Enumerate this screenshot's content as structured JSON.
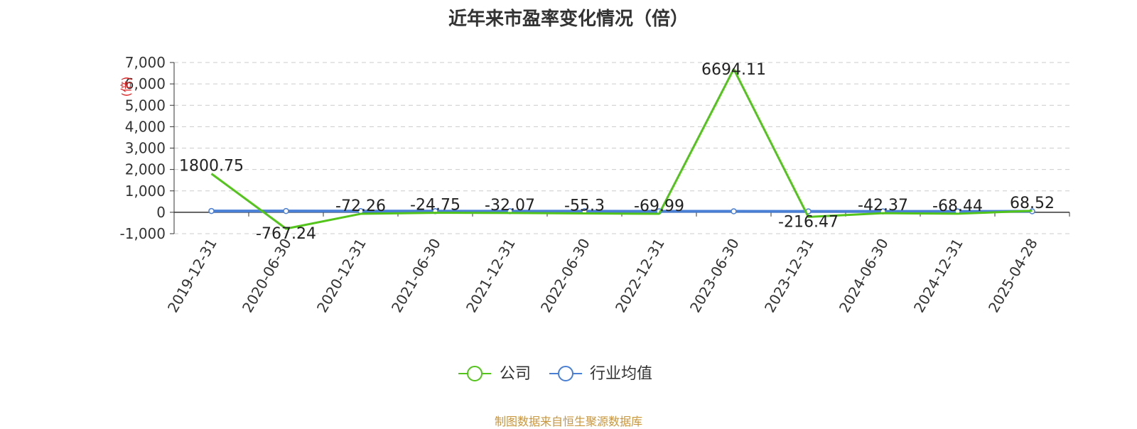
{
  "chart_data": {
    "type": "line",
    "title": "近年来市盈率变化情况（倍）",
    "ylabel": "(倍)",
    "xlabel": "",
    "x": [
      "2019-12-31",
      "2020-06-30",
      "2020-12-31",
      "2021-06-30",
      "2021-12-31",
      "2022-06-30",
      "2022-12-31",
      "2023-06-30",
      "2023-12-31",
      "2024-06-30",
      "2024-12-31",
      "2025-04-28"
    ],
    "ylim": [
      -1000,
      7000
    ],
    "yticks": [
      -1000,
      0,
      1000,
      2000,
      3000,
      4000,
      5000,
      6000,
      7000
    ],
    "ytick_labels": [
      "-1,000",
      "0",
      "1,000",
      "2,000",
      "3,000",
      "4,000",
      "5,000",
      "6,000",
      "7,000"
    ],
    "grid": true,
    "legend_position": "bottom",
    "series": [
      {
        "name": "公司",
        "color": "#52c41a",
        "values": [
          1800.75,
          -767.24,
          -72.26,
          -24.75,
          -32.07,
          -55.3,
          -69.99,
          6694.11,
          -216.47,
          -42.37,
          -68.44,
          68.52
        ],
        "labels": [
          "1800.75",
          "-767.24",
          "-72.26",
          "-24.75",
          "-32.07",
          "-55.3",
          "-69.99",
          "6694.11",
          "-216.47",
          "-42.37",
          "-68.44",
          "68.52"
        ]
      },
      {
        "name": "行业均值",
        "color": "#4a7fd6",
        "values": [
          60,
          58,
          55,
          52,
          50,
          48,
          46,
          44,
          42,
          40,
          40,
          45
        ]
      }
    ]
  },
  "source_note": "制图数据来自恒生聚源数据库"
}
